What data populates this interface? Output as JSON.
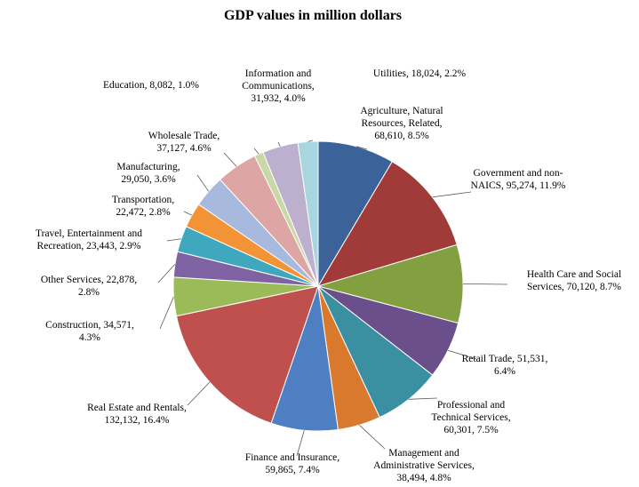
{
  "chart_data": {
    "type": "pie",
    "title": "GDP values in million dollars",
    "slices": [
      {
        "name": "Agriculture, Natural Resources, Related",
        "value": 68610,
        "percent": "8.5%",
        "color": "#3B6399",
        "label_lines": [
          "Agriculture,  Natural",
          "Resources,  Related,",
          "68,610, 8.5%"
        ]
      },
      {
        "name": "Government and non-NAICS",
        "value": 95274,
        "percent": "11.9%",
        "color": "#A03B39",
        "label_lines": [
          "Government  and non-",
          "NAICS, 95,274, 11.9%"
        ]
      },
      {
        "name": "Health Care and Social Services",
        "value": 70120,
        "percent": "8.7%",
        "color": "#82A040",
        "label_lines": [
          "Health Care and Social",
          "Services, 70,120, 8.7%"
        ]
      },
      {
        "name": "Retail Trade",
        "value": 51531,
        "percent": "6.4%",
        "color": "#6A4F8A",
        "label_lines": [
          "Retail  Trade, 51,531,",
          "6.4%"
        ]
      },
      {
        "name": "Professional and Technical Services",
        "value": 60301,
        "percent": "7.5%",
        "color": "#3A8FA1",
        "label_lines": [
          "Professional  and",
          "Technical  Services,",
          "60,301,  7.5%"
        ]
      },
      {
        "name": "Management and Administrative Services",
        "value": 38494,
        "percent": "4.8%",
        "color": "#D9792E",
        "label_lines": [
          "Management  and",
          "Administrative  Services,",
          "38,494, 4.8%"
        ]
      },
      {
        "name": "Finance and Insurance",
        "value": 59865,
        "percent": "7.4%",
        "color": "#4F7FC3",
        "label_lines": [
          "Finance and Insurance,",
          "59,865, 7.4%"
        ]
      },
      {
        "name": "Real Estate and Rentals",
        "value": 132132,
        "percent": "16.4%",
        "color": "#C0504D",
        "label_lines": [
          "Real Estate and Rentals,",
          "132,132, 16.4%"
        ]
      },
      {
        "name": "Construction",
        "value": 34571,
        "percent": "4.3%",
        "color": "#9BBB59",
        "label_lines": [
          "Construction,  34,571,",
          "4.3%"
        ]
      },
      {
        "name": "Other Services",
        "value": 22878,
        "percent": "2.8%",
        "color": "#7E62A1",
        "label_lines": [
          "Other Services,  22,878,",
          "2.8%"
        ]
      },
      {
        "name": "Travel, Entertainment and Recreation",
        "value": 23443,
        "percent": "2.9%",
        "color": "#3FA8BF",
        "label_lines": [
          "Travel,  Entertainment  and",
          "Recreation, 23,443, 2.9%"
        ]
      },
      {
        "name": "Transportation",
        "value": 22472,
        "percent": "2.8%",
        "color": "#F29436",
        "label_lines": [
          "Transportation,",
          "22,472,  2.8%"
        ]
      },
      {
        "name": "Manufacturing",
        "value": 29050,
        "percent": "3.6%",
        "color": "#A7B9DC",
        "label_lines": [
          "Manufacturing,",
          "29,050,  3.6%"
        ]
      },
      {
        "name": "Wholesale Trade",
        "value": 37127,
        "percent": "4.6%",
        "color": "#DDA5A4",
        "label_lines": [
          "Wholesale  Trade,",
          "37,127,  4.6%"
        ]
      },
      {
        "name": "Education",
        "value": 8082,
        "percent": "1.0%",
        "color": "#C8D9A6",
        "label_lines": [
          "Education,  8,082,  1.0%"
        ]
      },
      {
        "name": "Information and Communications",
        "value": 31932,
        "percent": "4.0%",
        "color": "#BDB0CF",
        "label_lines": [
          "Information  and",
          "Communications,",
          "31,932,  4.0%"
        ]
      },
      {
        "name": "Utilities",
        "value": 18024,
        "percent": "2.2%",
        "color": "#A8D5DF",
        "label_lines": [
          "Utilities,  18,024,  2.2%"
        ]
      }
    ]
  }
}
